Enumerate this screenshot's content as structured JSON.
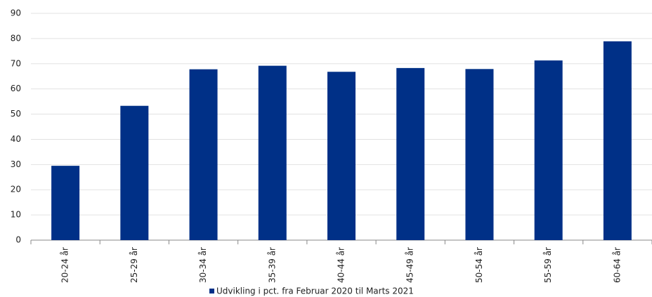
{
  "chart_data": {
    "type": "bar",
    "categories": [
      "20-24 år",
      "25-29 år",
      "30-34 år",
      "35-39 år",
      "40-44 år",
      "45-49 år",
      "50-54 år",
      "55-59 år",
      "60-64 år"
    ],
    "series": [
      {
        "name": "Udvikling i pct. fra Februar 2020 til Marts 2021",
        "color": "#003087",
        "values": [
          29.5,
          53.3,
          67.8,
          69.2,
          66.8,
          68.3,
          67.9,
          71.3,
          78.9
        ]
      }
    ],
    "ylim": [
      0,
      90
    ],
    "yticks": [
      0,
      10,
      20,
      30,
      40,
      50,
      60,
      70,
      80,
      90
    ],
    "grid": true,
    "legend": "bottom"
  }
}
